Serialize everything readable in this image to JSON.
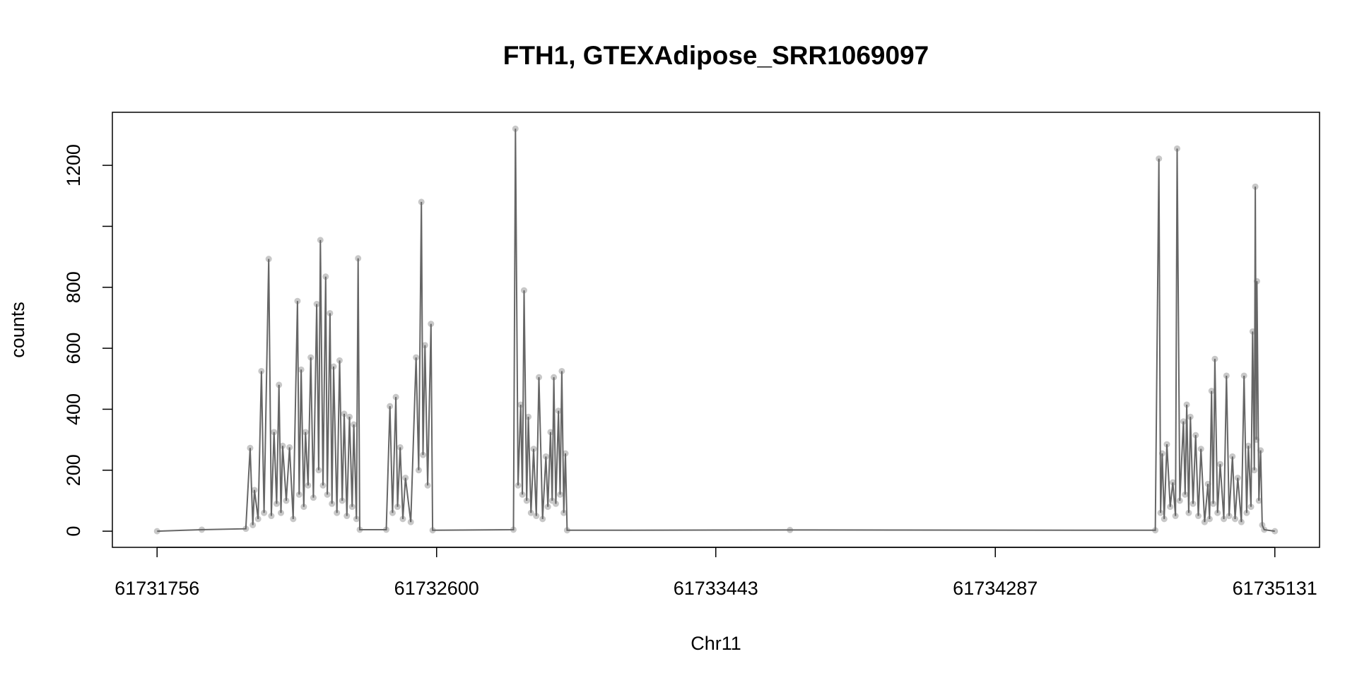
{
  "chart_data": {
    "type": "line",
    "title": "FTH1, GTEXAdipose_SRR1069097",
    "x_label": "Chr11",
    "y_label": "counts",
    "xlim": [
      61731621,
      61735266
    ],
    "ylim": [
      -53,
      1374
    ],
    "xticks": [
      61731756,
      61732600,
      61733443,
      61734287,
      61735131
    ],
    "yticks": [
      0,
      200,
      400,
      600,
      800,
      {
        "value": 1000
      },
      1200
    ],
    "series": [
      {
        "line_color": "#666666",
        "point_color": "#c8c8c8",
        "x": [
          61731756,
          61731891,
          61732024,
          61732037,
          61732045,
          61732050,
          61732061,
          61732071,
          61732079,
          61732093,
          61732101,
          61732109,
          61732117,
          61732124,
          61732130,
          61732135,
          61732146,
          61732156,
          61732167,
          61732180,
          61732185,
          61732191,
          61732199,
          61732204,
          61732212,
          61732220,
          61732228,
          61732238,
          61732244,
          61732249,
          61732257,
          61732265,
          61732270,
          61732278,
          61732284,
          61732289,
          61732299,
          61732307,
          61732315,
          61732321,
          61732329,
          61732337,
          61732345,
          61732350,
          61732358,
          61732363,
          61732368,
          61732448,
          61732459,
          61732467,
          61732477,
          61732482,
          61732490,
          61732498,
          61732506,
          61732522,
          61732538,
          61732546,
          61732554,
          61732559,
          61732565,
          61732573,
          61732583,
          61732588,
          61732832,
          61732838,
          61732846,
          61732854,
          61732859,
          61732864,
          61732872,
          61732877,
          61732885,
          61732893,
          61732901,
          61732909,
          61732920,
          61732930,
          61732936,
          61732944,
          61732949,
          61732954,
          61732960,
          61732968,
          61732973,
          61732978,
          61732984,
          61732989,
          61732994,
          61733667,
          61734770,
          61734781,
          61734786,
          61734791,
          61734797,
          61734805,
          61734815,
          61734823,
          61734831,
          61734836,
          61734844,
          61734855,
          61734860,
          61734865,
          61734871,
          61734876,
          61734884,
          61734892,
          61734900,
          61734908,
          61734919,
          61734929,
          61734934,
          61734940,
          61734945,
          61734950,
          61734958,
          61734966,
          61734977,
          61734985,
          61734993,
          61735003,
          61735011,
          61735019,
          61735030,
          61735038,
          61735046,
          61735051,
          61735059,
          61735064,
          61735069,
          61735072,
          61735075,
          61735077,
          61735083,
          61735088,
          61735093,
          61735099,
          61735131
        ],
        "values": [
          0,
          5,
          8,
          273,
          20,
          135,
          40,
          525,
          60,
          893,
          50,
          325,
          90,
          480,
          60,
          280,
          100,
          275,
          40,
          755,
          120,
          530,
          80,
          325,
          150,
          570,
          110,
          745,
          200,
          955,
          150,
          835,
          120,
          715,
          90,
          540,
          60,
          560,
          100,
          385,
          50,
          375,
          80,
          350,
          40,
          895,
          5,
          5,
          410,
          60,
          440,
          80,
          275,
          40,
          175,
          30,
          570,
          200,
          1080,
          250,
          610,
          150,
          680,
          3,
          5,
          1320,
          150,
          415,
          120,
          790,
          100,
          375,
          60,
          270,
          50,
          505,
          40,
          245,
          80,
          325,
          100,
          505,
          90,
          395,
          120,
          525,
          60,
          255,
          3,
          4,
          3,
          1222,
          60,
          255,
          40,
          285,
          80,
          160,
          50,
          1255,
          100,
          360,
          120,
          415,
          60,
          375,
          90,
          315,
          50,
          270,
          30,
          155,
          40,
          460,
          90,
          565,
          60,
          220,
          40,
          510,
          50,
          245,
          40,
          175,
          30,
          510,
          60,
          280,
          80,
          655,
          200,
          1130,
          300,
          820,
          100,
          265,
          20,
          5,
          0
        ]
      }
    ]
  }
}
